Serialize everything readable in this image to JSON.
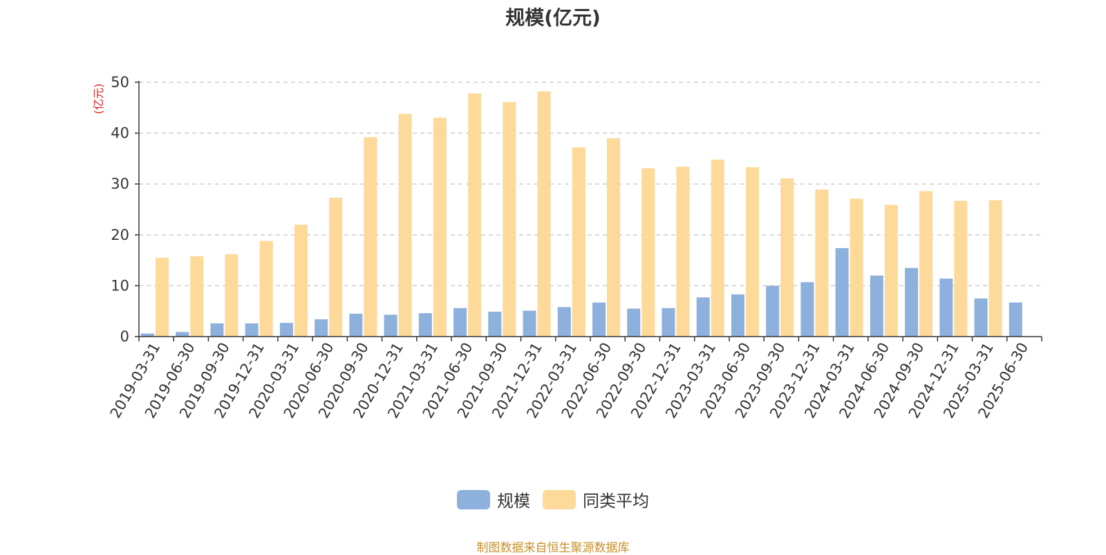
{
  "chart_data": {
    "type": "bar",
    "title": "规模(亿元)",
    "ylabel": "(亿元)",
    "xlabel": "",
    "ylim": [
      0,
      50
    ],
    "yticks": [
      0,
      10,
      20,
      30,
      40,
      50
    ],
    "grid": true,
    "legend_position": "bottom-center",
    "categories": [
      "2019-03-31",
      "2019-06-30",
      "2019-09-30",
      "2019-12-31",
      "2020-03-31",
      "2020-06-30",
      "2020-09-30",
      "2020-12-31",
      "2021-03-31",
      "2021-06-30",
      "2021-09-30",
      "2021-12-31",
      "2022-03-31",
      "2022-06-30",
      "2022-09-30",
      "2022-12-31",
      "2023-03-31",
      "2023-06-30",
      "2023-09-30",
      "2023-12-31",
      "2024-03-31",
      "2024-06-30",
      "2024-09-30",
      "2024-12-31",
      "2025-03-31",
      "2025-06-30"
    ],
    "series": [
      {
        "name": "规模",
        "color": "#8eb0dc",
        "values": [
          0.6,
          0.9,
          2.6,
          2.6,
          2.7,
          3.4,
          4.5,
          4.3,
          4.6,
          5.6,
          4.9,
          5.1,
          5.8,
          6.7,
          5.5,
          5.6,
          7.7,
          8.3,
          10.0,
          10.7,
          17.4,
          12.0,
          13.5,
          11.4,
          7.5,
          6.7
        ]
      },
      {
        "name": "同类平均",
        "color": "#fdd99a",
        "values": [
          15.5,
          15.8,
          16.2,
          18.8,
          22.0,
          27.3,
          39.2,
          43.8,
          43.0,
          47.8,
          46.1,
          48.2,
          37.2,
          39.0,
          33.1,
          33.4,
          34.8,
          33.3,
          31.1,
          28.9,
          27.1,
          25.9,
          28.6,
          26.7,
          26.8,
          null
        ]
      }
    ]
  },
  "legend": {
    "items": [
      "规模",
      "同类平均"
    ]
  },
  "source_note": "制图数据来自恒生聚源数据库"
}
